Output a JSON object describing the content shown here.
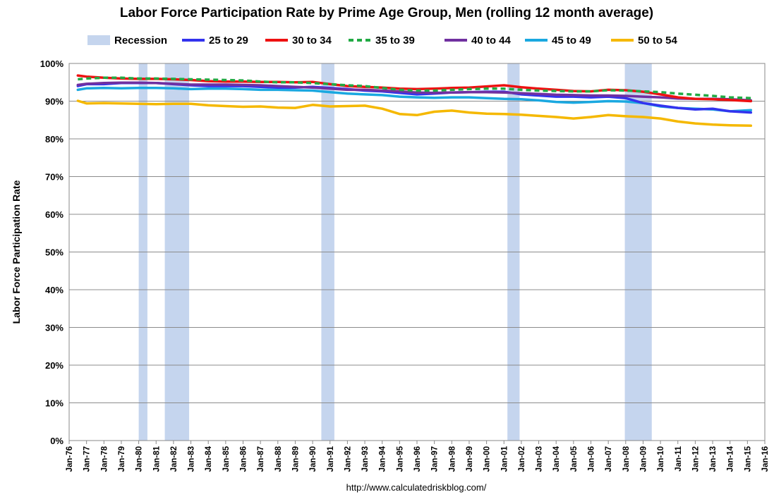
{
  "chart_data": {
    "type": "line",
    "title": "Labor Force Participation Rate by Prime Age Group, Men (rolling 12 month average)",
    "ylabel": "Labor Force Participation Rate",
    "xlabel": "",
    "source": "http://www.calculatedriskblog.com/",
    "ylim": [
      0,
      100
    ],
    "yticks": [
      0,
      10,
      20,
      30,
      40,
      50,
      60,
      70,
      80,
      90,
      100
    ],
    "ytick_labels": [
      "0%",
      "10%",
      "20%",
      "30%",
      "40%",
      "50%",
      "60%",
      "70%",
      "80%",
      "90%",
      "100%"
    ],
    "xlim": [
      1976,
      2016
    ],
    "xtick_labels": [
      "Jan-76",
      "Jan-77",
      "Jan-78",
      "Jan-79",
      "Jan-80",
      "Jan-81",
      "Jan-82",
      "Jan-83",
      "Jan-84",
      "Jan-85",
      "Jan-86",
      "Jan-87",
      "Jan-88",
      "Jan-89",
      "Jan-90",
      "Jan-91",
      "Jan-92",
      "Jan-93",
      "Jan-94",
      "Jan-95",
      "Jan-96",
      "Jan-97",
      "Jan-98",
      "Jan-99",
      "Jan-00",
      "Jan-01",
      "Jan-02",
      "Jan-03",
      "Jan-04",
      "Jan-05",
      "Jan-06",
      "Jan-07",
      "Jan-08",
      "Jan-09",
      "Jan-10",
      "Jan-11",
      "Jan-12",
      "Jan-13",
      "Jan-14",
      "Jan-15",
      "Jan-16"
    ],
    "grid": "horizontal",
    "legend_position": "top",
    "recession_label": "Recession",
    "recession_color": "#c5d5ee",
    "recessions": [
      [
        1980.0,
        1980.5
      ],
      [
        1981.5,
        1982.9
      ],
      [
        1990.5,
        1991.25
      ],
      [
        2001.2,
        2001.9
      ],
      [
        2007.95,
        2009.5
      ]
    ],
    "series": [
      {
        "name": "25 to 29",
        "color": "#3333ee",
        "dash": false,
        "x": [
          1976.5,
          1977,
          1978,
          1979,
          1980,
          1981,
          1982,
          1983,
          1984,
          1985,
          1986,
          1987,
          1988,
          1989,
          1990,
          1991,
          1992,
          1993,
          1994,
          1995,
          1996,
          1997,
          1998,
          1999,
          2000,
          2001,
          2002,
          2003,
          2004,
          2005,
          2006,
          2007,
          2008,
          2009,
          2010,
          2011,
          2012,
          2013,
          2014,
          2015.2
        ],
        "y": [
          94.0,
          94.5,
          94.5,
          94.8,
          94.8,
          94.8,
          94.5,
          94.2,
          94.0,
          94.0,
          94.0,
          93.8,
          93.6,
          93.6,
          93.8,
          93.5,
          93.2,
          92.8,
          92.6,
          92.2,
          91.8,
          92.0,
          92.3,
          92.4,
          92.5,
          92.5,
          91.8,
          91.5,
          91.2,
          91.2,
          91.0,
          91.2,
          90.8,
          89.5,
          88.8,
          88.2,
          87.8,
          88.0,
          87.3,
          87.0
        ]
      },
      {
        "name": "30 to 34",
        "color": "#ee1111",
        "dash": false,
        "x": [
          1976.5,
          1977,
          1978,
          1979,
          1980,
          1981,
          1982,
          1983,
          1984,
          1985,
          1986,
          1987,
          1988,
          1989,
          1990,
          1991,
          1992,
          1993,
          1994,
          1995,
          1996,
          1997,
          1998,
          1999,
          2000,
          2001,
          2002,
          2003,
          2004,
          2005,
          2006,
          2007,
          2008,
          2009,
          2010,
          2011,
          2012,
          2013,
          2014,
          2015.2
        ],
        "y": [
          96.8,
          96.5,
          96.2,
          96.0,
          95.9,
          95.9,
          95.8,
          95.6,
          95.3,
          95.2,
          95.2,
          95.1,
          95.1,
          95.0,
          95.1,
          94.5,
          94.0,
          93.8,
          93.6,
          93.3,
          93.2,
          93.3,
          93.5,
          93.6,
          93.9,
          94.2,
          93.7,
          93.3,
          93.0,
          92.7,
          92.6,
          93.0,
          92.9,
          92.5,
          91.8,
          91.0,
          90.6,
          90.5,
          90.3,
          90.0
        ]
      },
      {
        "name": "35 to 39",
        "color": "#22aa44",
        "dash": true,
        "x": [
          1976.5,
          1977,
          1978,
          1979,
          1980,
          1981,
          1982,
          1983,
          1984,
          1985,
          1986,
          1987,
          1988,
          1989,
          1990,
          1991,
          1992,
          1993,
          1994,
          1995,
          1996,
          1997,
          1998,
          1999,
          2000,
          2001,
          2002,
          2003,
          2004,
          2005,
          2006,
          2007,
          2008,
          2009,
          2010,
          2011,
          2012,
          2013,
          2014,
          2015.2
        ],
        "y": [
          95.8,
          96.0,
          96.2,
          96.2,
          96.0,
          96.0,
          95.9,
          95.8,
          95.7,
          95.6,
          95.5,
          95.2,
          95.0,
          95.0,
          94.8,
          94.5,
          94.2,
          94.0,
          93.5,
          93.0,
          92.8,
          92.8,
          93.0,
          93.2,
          93.3,
          93.3,
          93.0,
          92.8,
          92.7,
          92.6,
          92.6,
          92.9,
          92.8,
          92.6,
          92.4,
          92.0,
          91.7,
          91.4,
          91.0,
          90.8
        ]
      },
      {
        "name": "40 to 44",
        "color": "#7030a0",
        "dash": false,
        "x": [
          1976.5,
          1977,
          1978,
          1979,
          1980,
          1981,
          1982,
          1983,
          1984,
          1985,
          1986,
          1987,
          1988,
          1989,
          1990,
          1991,
          1992,
          1993,
          1994,
          1995,
          1996,
          1997,
          1998,
          1999,
          2000,
          2001,
          2002,
          2003,
          2004,
          2005,
          2006,
          2007,
          2008,
          2009,
          2010,
          2011,
          2012,
          2013,
          2014,
          2015.2
        ],
        "y": [
          94.3,
          94.6,
          94.8,
          94.9,
          94.9,
          94.8,
          94.6,
          94.4,
          94.4,
          94.4,
          94.3,
          94.2,
          94.0,
          93.8,
          93.6,
          93.3,
          93.0,
          93.0,
          92.8,
          92.6,
          92.3,
          92.2,
          92.3,
          92.4,
          92.4,
          92.3,
          92.1,
          91.9,
          91.7,
          91.6,
          91.5,
          91.5,
          91.4,
          91.2,
          91.0,
          90.7,
          90.6,
          90.6,
          90.5,
          90.2
        ]
      },
      {
        "name": "45 to 49",
        "color": "#1aa8e0",
        "dash": false,
        "x": [
          1976.5,
          1977,
          1978,
          1979,
          1980,
          1981,
          1982,
          1983,
          1984,
          1985,
          1986,
          1987,
          1988,
          1989,
          1990,
          1991,
          1992,
          1993,
          1994,
          1995,
          1996,
          1997,
          1998,
          1999,
          2000,
          2001,
          2002,
          2003,
          2004,
          2005,
          2006,
          2007,
          2008,
          2009,
          2010,
          2011,
          2012,
          2013,
          2014,
          2015.2
        ],
        "y": [
          93.0,
          93.4,
          93.5,
          93.4,
          93.5,
          93.5,
          93.4,
          93.2,
          93.3,
          93.3,
          93.2,
          93.0,
          93.0,
          92.9,
          92.8,
          92.4,
          92.0,
          91.8,
          91.6,
          91.2,
          91.0,
          90.9,
          91.0,
          91.0,
          90.8,
          90.6,
          90.5,
          90.2,
          89.8,
          89.6,
          89.8,
          90.0,
          89.9,
          89.5,
          88.6,
          88.2,
          88.0,
          87.8,
          87.3,
          87.6
        ]
      },
      {
        "name": "50 to 54",
        "color": "#f5b800",
        "dash": false,
        "x": [
          1976.5,
          1977,
          1978,
          1979,
          1980,
          1981,
          1982,
          1983,
          1984,
          1985,
          1986,
          1987,
          1988,
          1989,
          1990,
          1991,
          1992,
          1993,
          1994,
          1995,
          1996,
          1997,
          1998,
          1999,
          2000,
          2001,
          2002,
          2003,
          2004,
          2005,
          2006,
          2007,
          2008,
          2009,
          2010,
          2011,
          2012,
          2013,
          2014,
          2015.2
        ],
        "y": [
          90.1,
          89.4,
          89.5,
          89.4,
          89.3,
          89.2,
          89.3,
          89.3,
          88.9,
          88.7,
          88.5,
          88.6,
          88.3,
          88.2,
          89.0,
          88.6,
          88.7,
          88.8,
          88.0,
          86.6,
          86.3,
          87.2,
          87.5,
          87.0,
          86.7,
          86.6,
          86.4,
          86.1,
          85.8,
          85.4,
          85.8,
          86.3,
          86.0,
          85.8,
          85.4,
          84.6,
          84.1,
          83.8,
          83.6,
          83.5
        ]
      }
    ]
  }
}
